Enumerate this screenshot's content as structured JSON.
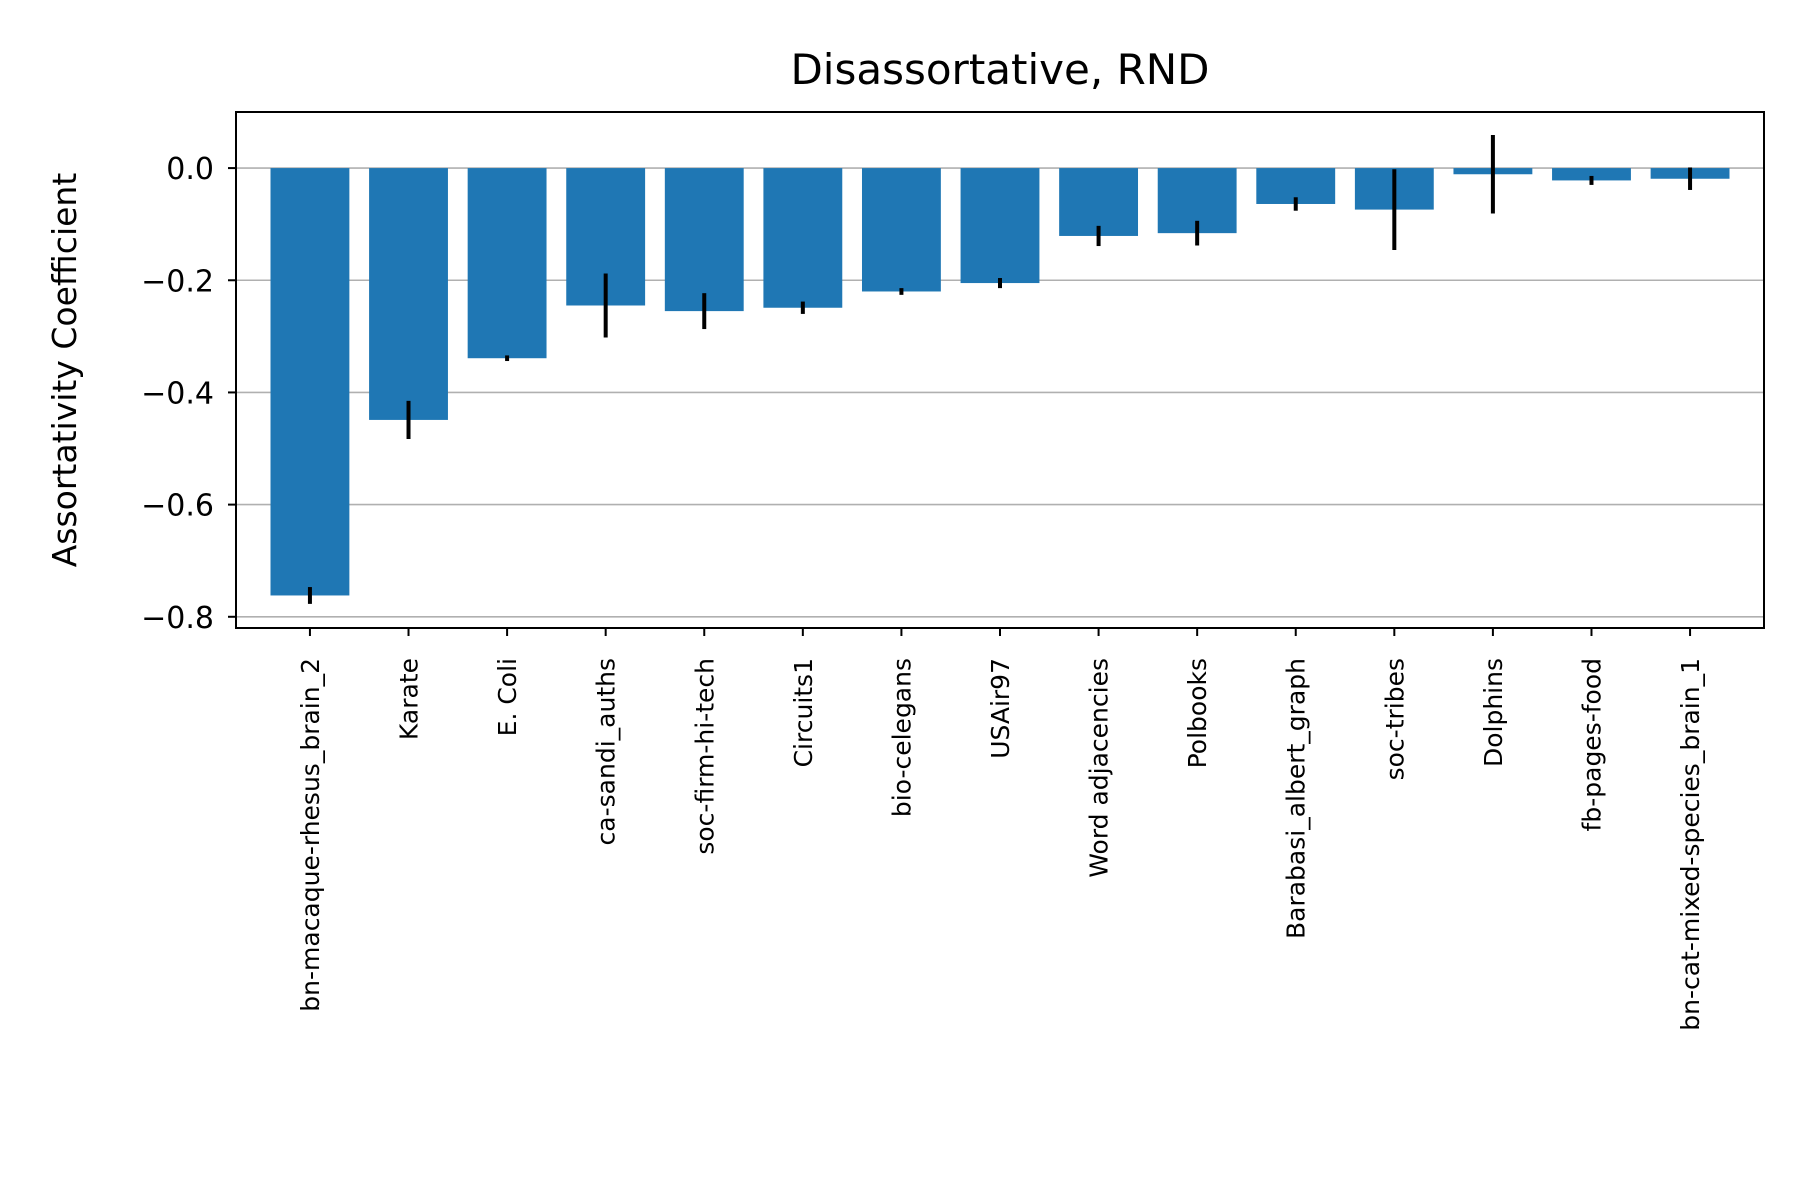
{
  "chart_data": {
    "type": "bar",
    "title": "Disassortative, RND",
    "xlabel": "",
    "ylabel": "Assortativity Coefficient",
    "ylim": [
      -0.82,
      0.1
    ],
    "yticks": [
      0.0,
      -0.2,
      -0.4,
      -0.6,
      -0.8
    ],
    "ytick_labels": [
      "0.0",
      "−0.2",
      "−0.4",
      "−0.6",
      "−0.8"
    ],
    "grid": "y",
    "bar_color": "#1f77b4",
    "categories": [
      "bn-macaque-rhesus_brain_2",
      "Karate",
      "E. Coli",
      "ca-sandi_auths",
      "soc-firm-hi-tech",
      "Circuits1",
      "bio-celegans",
      "USAir97",
      "Word adjacencies",
      "Polbooks",
      "Barabasi_albert_graph",
      "soc-tribes",
      "Dolphins",
      "fb-pages-food",
      "bn-cat-mixed-species_brain_1"
    ],
    "values": [
      -0.762,
      -0.449,
      -0.339,
      -0.245,
      -0.255,
      -0.249,
      -0.22,
      -0.205,
      -0.121,
      -0.116,
      -0.064,
      -0.074,
      -0.011,
      -0.022,
      -0.019
    ],
    "errors": [
      0.015,
      0.034,
      0.005,
      0.057,
      0.032,
      0.011,
      0.006,
      0.009,
      0.018,
      0.022,
      0.012,
      0.072,
      0.07,
      0.008,
      0.02
    ]
  }
}
